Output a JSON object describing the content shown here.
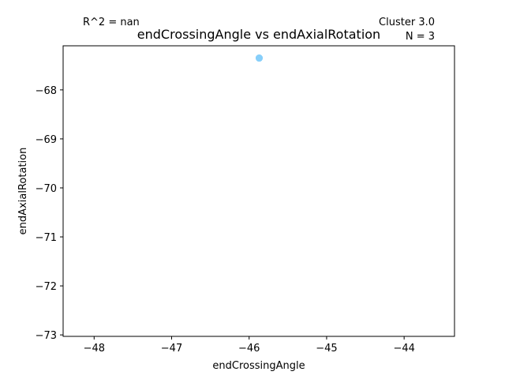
{
  "chart_data": {
    "type": "scatter",
    "title": "endCrossingAngle vs endAxialRotation",
    "xlabel": "endCrossingAngle",
    "ylabel": "endAxialRotation",
    "xlim": [
      -48.4,
      -43.35
    ],
    "ylim": [
      -73.03,
      -67.1
    ],
    "xticks": [
      -48,
      -47,
      -46,
      -45,
      -44
    ],
    "yticks": [
      -68,
      -69,
      -70,
      -71,
      -72,
      -73
    ],
    "xtick_labels": [
      "−48",
      "−47",
      "−46",
      "−45",
      "−44"
    ],
    "ytick_labels": [
      "−68",
      "−69",
      "−70",
      "−71",
      "−72",
      "−73"
    ],
    "points": [
      {
        "x": -45.87,
        "y": -67.35
      },
      {
        "x": -45.87,
        "y": -67.35
      },
      {
        "x": -45.87,
        "y": -67.35
      }
    ],
    "point_color": "#87CEFA",
    "grid": false,
    "annotations": {
      "r2": "R^2 = nan",
      "cluster": "Cluster 3.0",
      "n": "N = 3"
    }
  }
}
